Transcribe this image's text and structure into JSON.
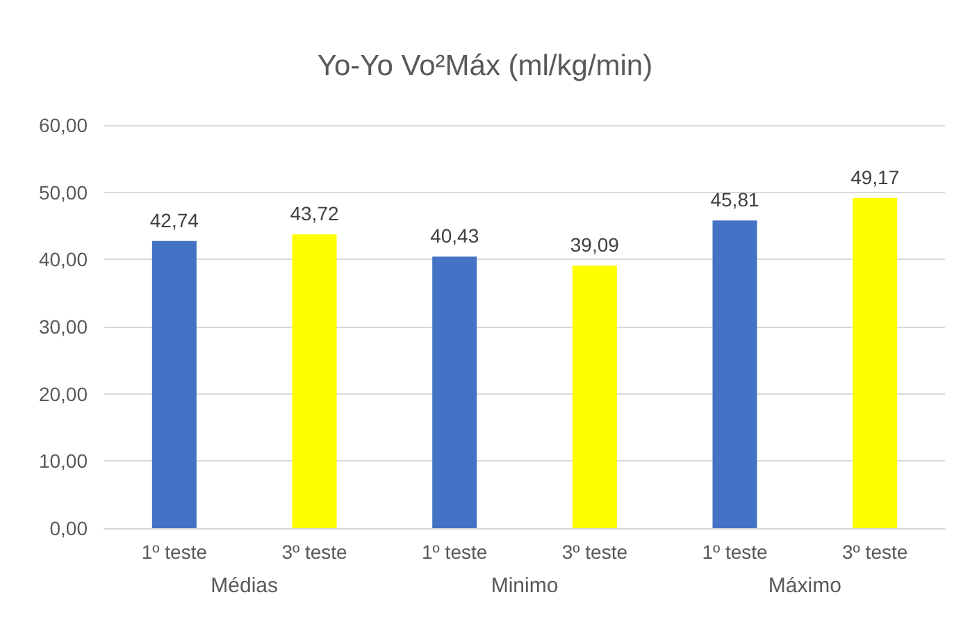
{
  "chart_data": {
    "type": "bar",
    "title": "Yo-Yo Vo²Máx (ml/kg/min)",
    "categories": [
      "1º teste",
      "3º teste",
      "1º teste",
      "3º teste",
      "1º teste",
      "3º teste"
    ],
    "values": [
      42.74,
      43.72,
      40.43,
      39.09,
      45.81,
      49.17
    ],
    "value_labels": [
      "42,74",
      "43,72",
      "40,43",
      "39,09",
      "45,81",
      "49,17"
    ],
    "colors": [
      "#4472c4",
      "#ffff00",
      "#4472c4",
      "#ffff00",
      "#4472c4",
      "#ffff00"
    ],
    "annotations": [
      "Médias",
      "Minimo",
      "Máximo"
    ],
    "ylim": [
      0,
      60
    ],
    "yticks": [
      {
        "value": 0,
        "label": "0,00"
      },
      {
        "value": 10,
        "label": "10,00"
      },
      {
        "value": 20,
        "label": "20,00"
      },
      {
        "value": 30,
        "label": "30,00"
      },
      {
        "value": 40,
        "label": "40,00"
      },
      {
        "value": 50,
        "label": "50,00"
      },
      {
        "value": 60,
        "label": "60,00"
      }
    ],
    "grid": true
  }
}
